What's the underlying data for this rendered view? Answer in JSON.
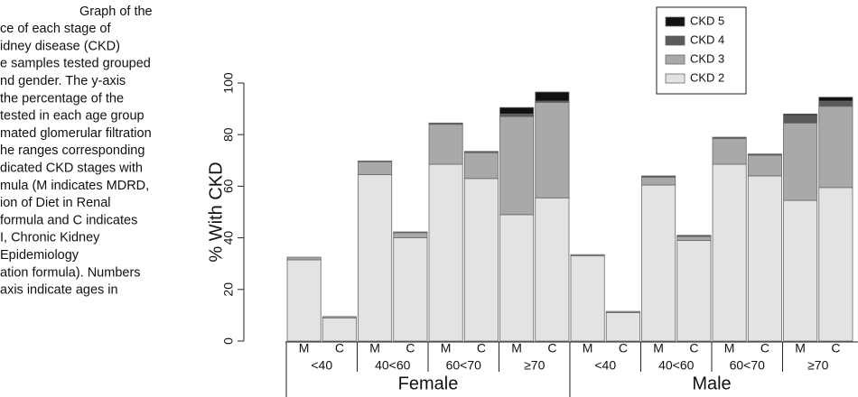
{
  "caption": [
    "Graph of the",
    "ce of each stage of",
    "idney disease (CKD)",
    "e samples tested grouped",
    "nd gender. The y-axis",
    "the percentage of the",
    "tested in each age group",
    "mated glomerular filtration",
    "he ranges corresponding",
    "dicated CKD stages with",
    "mula (M indicates MDRD,",
    "ion of Diet in Renal",
    "formula and C indicates",
    "I, Chronic Kidney",
    "Epidemiology",
    "ation formula). Numbers",
    "axis indicate ages in"
  ],
  "chart_data": {
    "type": "stacked_bar",
    "y_label": "% With CKD",
    "categories": [
      "M",
      "C",
      "M",
      "C",
      "M",
      "C",
      "M",
      "C",
      "M",
      "C",
      "M",
      "C",
      "M",
      "C",
      "M",
      "C"
    ],
    "age_groups": [
      "<40",
      "40<60",
      "60<70",
      "≥70",
      "<40",
      "40<60",
      "60<70",
      "≥70"
    ],
    "genders": [
      "Female",
      "Male"
    ],
    "series": [
      {
        "name": "CKD 2",
        "color": "#e3e3e3",
        "values": [
          31.5,
          9,
          64.5,
          40,
          68.5,
          63,
          49,
          55.5,
          33,
          11,
          60.5,
          39,
          68.5,
          64,
          54.5,
          59.5
        ]
      },
      {
        "name": "CKD 3",
        "color": "#a9a9a9",
        "values": [
          1,
          0.5,
          5,
          2,
          15.5,
          10,
          38,
          37,
          0.5,
          0.5,
          3,
          1.5,
          10,
          8,
          30,
          31.5
        ]
      },
      {
        "name": "CKD 4",
        "color": "#5a5a5a",
        "values": [
          0,
          0,
          0.3,
          0.3,
          0.5,
          0.5,
          1,
          0.5,
          0,
          0,
          0.5,
          0.5,
          0.5,
          0.5,
          3,
          2
        ]
      },
      {
        "name": "CKD 5",
        "color": "#111111",
        "values": [
          0,
          0,
          0,
          0,
          0,
          0,
          2.5,
          3.5,
          0,
          0,
          0,
          0,
          0,
          0,
          0.5,
          1.5
        ]
      }
    ],
    "ylim": [
      0,
      100
    ],
    "yticks": [
      0,
      20,
      40,
      60,
      80,
      100
    ]
  }
}
